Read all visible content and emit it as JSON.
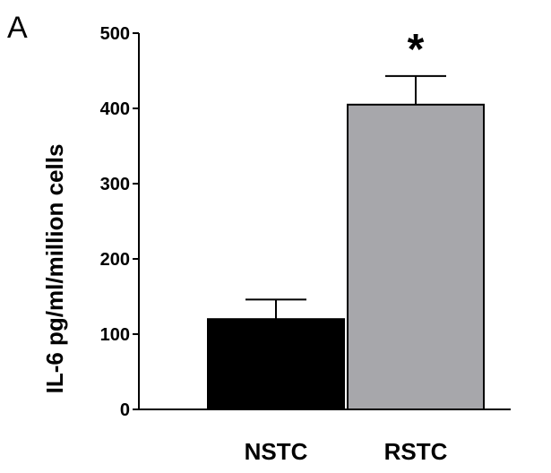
{
  "panel_label": "A",
  "chart_data": {
    "type": "bar",
    "categories": [
      "NSTC",
      "RSTC"
    ],
    "values": [
      120,
      405
    ],
    "errors": [
      26,
      38
    ],
    "bar_colors": [
      "#000000",
      "#a7a7ab"
    ],
    "annotations": [
      "",
      "*"
    ],
    "ylabel": "IL-6 pg/ml/million cells",
    "xlabel": "",
    "ylim": [
      0,
      500
    ],
    "yticks": [
      0,
      100,
      200,
      300,
      400,
      500
    ],
    "grid": false
  }
}
